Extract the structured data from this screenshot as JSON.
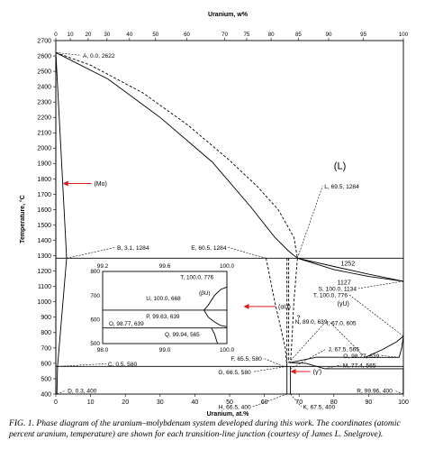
{
  "chart_data": {
    "type": "line",
    "title": "",
    "top_axis": {
      "label": "Uranium, w%",
      "ticks": [
        {
          "label": "0",
          "at_pct": 0
        },
        {
          "label": "10",
          "at_pct": 4.17
        },
        {
          "label": "20",
          "at_pct": 9.3
        },
        {
          "label": "30",
          "at_pct": 14.73
        },
        {
          "label": "40",
          "at_pct": 21.2
        },
        {
          "label": "50",
          "at_pct": 28.7
        },
        {
          "label": "60",
          "at_pct": 37.7
        },
        {
          "label": "70",
          "at_pct": 48.6
        },
        {
          "label": "75",
          "at_pct": 54.9
        },
        {
          "label": "80",
          "at_pct": 61.95
        },
        {
          "label": "85",
          "at_pct": 69.8
        },
        {
          "label": "90",
          "at_pct": 78.5
        },
        {
          "label": "95",
          "at_pct": 88.5
        },
        {
          "label": "100",
          "at_pct": 100
        }
      ]
    },
    "xlabel": "Uranium, at.%",
    "ylabel": "Temperature, °C",
    "xlim": [
      0,
      100
    ],
    "ylim": [
      400,
      2700
    ],
    "xticks": [
      0,
      10,
      20,
      30,
      40,
      50,
      60,
      70,
      80,
      90,
      100
    ],
    "yticks": [
      400,
      500,
      600,
      700,
      800,
      900,
      1000,
      1100,
      1200,
      1300,
      1400,
      1500,
      1600,
      1700,
      1800,
      1900,
      2000,
      2100,
      2200,
      2300,
      2400,
      2500,
      2600,
      2700
    ],
    "series": [
      {
        "style": "solid",
        "points": [
          [
            0,
            2622
          ],
          [
            3.1,
            1284
          ],
          [
            0.5,
            580
          ],
          [
            0.3,
            400
          ]
        ]
      },
      {
        "style": "solid",
        "points": [
          [
            0,
            2622
          ],
          [
            0,
            400
          ]
        ]
      },
      {
        "style": "solid",
        "points": [
          [
            0,
            2622
          ],
          [
            15,
            2450
          ],
          [
            30,
            2200
          ],
          [
            45,
            1910
          ],
          [
            56,
            1620
          ],
          [
            63,
            1420
          ],
          [
            67,
            1330
          ],
          [
            69.5,
            1284
          ]
        ]
      },
      {
        "style": "dashed",
        "points": [
          [
            0,
            2622
          ],
          [
            10,
            2540
          ],
          [
            25,
            2360
          ],
          [
            38,
            2150
          ],
          [
            50,
            1920
          ],
          [
            58,
            1750
          ],
          [
            64,
            1600
          ],
          [
            68.5,
            1420
          ],
          [
            69.5,
            1284
          ]
        ]
      },
      {
        "style": "solid",
        "points": [
          [
            0,
            1284
          ],
          [
            100,
            1284
          ]
        ]
      },
      {
        "style": "solid",
        "points": [
          [
            69.5,
            1284
          ],
          [
            80,
            1230
          ],
          [
            90,
            1180
          ],
          [
            100,
            1134
          ]
        ]
      },
      {
        "style": "solid",
        "points": [
          [
            69.5,
            1284
          ],
          [
            80,
            1210
          ],
          [
            90,
            1165
          ],
          [
            100,
            1134
          ]
        ]
      },
      {
        "style": "dashed",
        "points": [
          [
            60.5,
            1284
          ],
          [
            63,
            1000
          ],
          [
            66,
            700
          ],
          [
            66.5,
            580
          ]
        ]
      },
      {
        "style": "dashed",
        "points": [
          [
            69.5,
            1284
          ],
          [
            68.5,
            1000
          ],
          [
            67.8,
            700
          ],
          [
            67.5,
            605
          ]
        ]
      },
      {
        "style": "dashed",
        "points": [
          [
            66.5,
            1284
          ],
          [
            66.5,
            580
          ]
        ]
      },
      {
        "style": "dashed",
        "points": [
          [
            67,
            1284
          ],
          [
            67,
            605
          ]
        ]
      },
      {
        "style": "solid",
        "points": [
          [
            0,
            580
          ],
          [
            100,
            580
          ]
        ]
      },
      {
        "style": "solid",
        "points": [
          [
            67,
            605
          ],
          [
            72,
            600
          ],
          [
            77.4,
            565
          ]
        ]
      },
      {
        "style": "solid",
        "points": [
          [
            67.5,
            605
          ],
          [
            75,
            640
          ],
          [
            89,
            639
          ],
          [
            98.77,
            639
          ]
        ]
      },
      {
        "style": "solid",
        "points": [
          [
            89,
            639
          ],
          [
            94,
            690
          ],
          [
            98,
            740
          ],
          [
            100,
            776
          ]
        ]
      },
      {
        "style": "solid",
        "points": [
          [
            98.77,
            639
          ],
          [
            99.5,
            700
          ],
          [
            100,
            776
          ]
        ]
      },
      {
        "style": "solid",
        "points": [
          [
            77.4,
            565
          ],
          [
            100,
            565
          ]
        ]
      },
      {
        "style": "solid",
        "points": [
          [
            66.5,
            580
          ],
          [
            66.5,
            400
          ]
        ]
      },
      {
        "style": "solid",
        "points": [
          [
            67.5,
            580
          ],
          [
            67.5,
            400
          ]
        ]
      },
      {
        "style": "solid",
        "points": [
          [
            99.96,
            400
          ],
          [
            99.96,
            565
          ]
        ]
      }
    ],
    "points": [
      {
        "label": "A, 0.0, 2622",
        "x": 0,
        "y": 2622
      },
      {
        "label": "B, 3.1, 1284",
        "x": 3.1,
        "y": 1284
      },
      {
        "label": "C, 0.5, 580",
        "x": 0.5,
        "y": 580
      },
      {
        "label": "D, 0.3, 400",
        "x": 0.3,
        "y": 400
      },
      {
        "label": "E, 60.5, 1284",
        "x": 60.5,
        "y": 1284
      },
      {
        "label": "F, 65.5, 580",
        "x": 65.5,
        "y": 580
      },
      {
        "label": "G, 66.5, 580",
        "x": 66.5,
        "y": 580
      },
      {
        "label": "H, 66.5, 400",
        "x": 66.5,
        "y": 400
      },
      {
        "label": "I, 67.0, 605",
        "x": 67,
        "y": 605
      },
      {
        "label": "J, 67.5, 565",
        "x": 67.5,
        "y": 565
      },
      {
        "label": "K, 67.5, 400",
        "x": 67.5,
        "y": 400
      },
      {
        "label": "L, 69.5, 1284",
        "x": 69.5,
        "y": 1284
      },
      {
        "label": "M, 77.4, 565",
        "x": 77.4,
        "y": 565
      },
      {
        "label": "N, 89.0, 639",
        "x": 89,
        "y": 639
      },
      {
        "label": "O, 98.77, 639",
        "x": 98.77,
        "y": 639
      },
      {
        "label": "R, 99.96, 400",
        "x": 99.96,
        "y": 400
      },
      {
        "label": "S, 100.0, 1134",
        "x": 100,
        "y": 1134
      },
      {
        "label": "T, 100.0, 776",
        "x": 100,
        "y": 776
      }
    ],
    "annotations": [
      {
        "text": "1252",
        "x": 82,
        "y": 1252
      },
      {
        "text": "1127",
        "x": 81,
        "y": 1127
      },
      {
        "text": "?",
        "x": 69.3,
        "y": 900
      },
      {
        "text": "(L)",
        "x": 80,
        "y": 1880,
        "color": "#e0191f"
      },
      {
        "text": "(Mo)",
        "x": 11,
        "y": 1770,
        "color": "#e0191f",
        "arrow_to": [
          2,
          1770
        ]
      },
      {
        "text": "(αU)",
        "x": 64,
        "y": 970,
        "color": "#e0191f",
        "arrow_to": [
          54,
          970
        ]
      },
      {
        "text": "(γU)",
        "x": 81,
        "y": 990,
        "color": "#e0191f"
      },
      {
        "text": "(γ')",
        "x": 74,
        "y": 547,
        "color": "#e0191f",
        "arrow_to": [
          67.5,
          547
        ]
      }
    ],
    "inset": {
      "xlim": [
        98,
        100
      ],
      "ylim": [
        500,
        800
      ],
      "xticks": [
        "98.0",
        "99.0",
        "100.0"
      ],
      "yticks": [
        "500",
        "600",
        "700",
        "800"
      ],
      "top_labels": [
        "99.2",
        "99.6",
        "100.0"
      ],
      "lines": [
        {
          "points": [
            [
              98,
              639
            ],
            [
              100,
              639
            ]
          ]
        },
        {
          "points": [
            [
              98,
              565
            ],
            [
              100,
              565
            ]
          ]
        },
        {
          "points": [
            [
              99.63,
              639
            ],
            [
              99.7,
              660
            ],
            [
              99.8,
              700
            ],
            [
              99.9,
              725
            ],
            [
              100,
              735
            ]
          ]
        },
        {
          "points": [
            [
              99.63,
              639
            ],
            [
              99.7,
              610
            ],
            [
              99.8,
              590
            ],
            [
              99.9,
              575
            ],
            [
              100,
              570
            ]
          ]
        },
        {
          "points": [
            [
              99.75,
              565
            ],
            [
              99.8,
              540
            ],
            [
              99.85,
              500
            ]
          ]
        }
      ],
      "labels": [
        {
          "text": "T, 100.0, 776",
          "x": 99.25,
          "y": 776
        },
        {
          "text": "U, 100.0, 668",
          "x": 98.7,
          "y": 688
        },
        {
          "text": "(βU)",
          "x": 99.55,
          "y": 710
        },
        {
          "text": "P, 99.63, 639",
          "x": 98.7,
          "y": 614
        },
        {
          "text": "O, 98.77, 639",
          "x": 98.1,
          "y": 584
        },
        {
          "text": "Q, 99.94, 565",
          "x": 99.0,
          "y": 538
        }
      ]
    },
    "grid": false,
    "legend": "none"
  },
  "caption": "FIG. 1. Phase diagram of the uranium–molybdenum system developed during this work. The coordinates (atomic percent uranium, temperature) are shown for each transition-line junction (courtesy of James L. Snelgrove)."
}
